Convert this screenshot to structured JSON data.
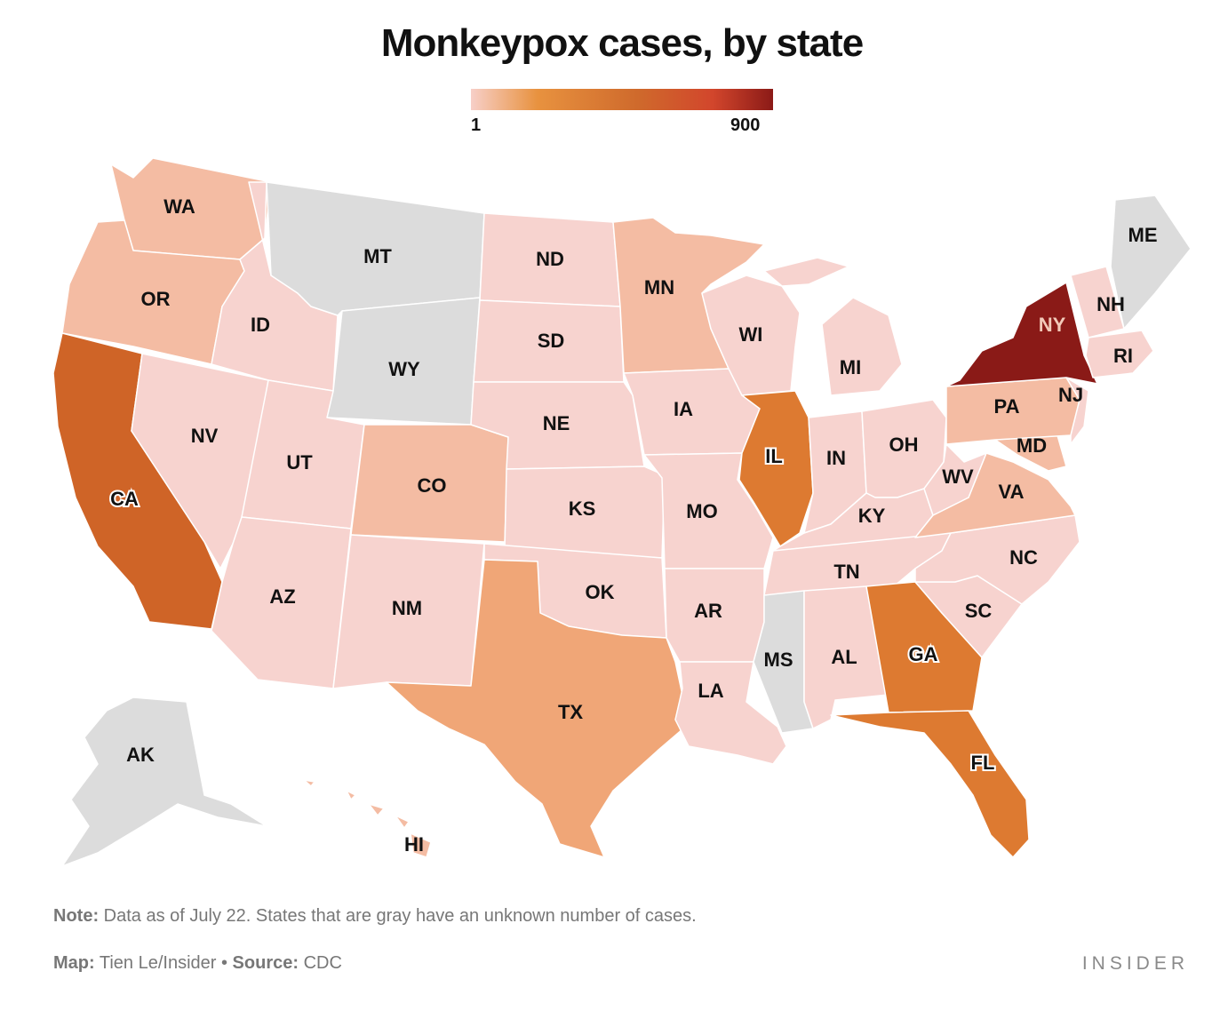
{
  "title": "Monkeypox cases, by state",
  "legend": {
    "min_label": "1",
    "max_label": "900",
    "stops": [
      "#f7cfc8",
      "#e8923f",
      "#cf6a2c",
      "#d2462c",
      "#8b1a17"
    ]
  },
  "colors": {
    "unknown": "#dcdcdc",
    "lowest": "#f7d3cf",
    "low": "#f4bca3",
    "mid_low": "#f0a677",
    "mid": "#dd7a31",
    "high": "#cf6427",
    "highest": "#8a1a17"
  },
  "states": [
    {
      "code": "WA",
      "level": "low"
    },
    {
      "code": "OR",
      "level": "low"
    },
    {
      "code": "CA",
      "level": "high"
    },
    {
      "code": "ID",
      "level": "lowest"
    },
    {
      "code": "NV",
      "level": "lowest"
    },
    {
      "code": "MT",
      "level": "unknown"
    },
    {
      "code": "WY",
      "level": "unknown"
    },
    {
      "code": "UT",
      "level": "lowest"
    },
    {
      "code": "AZ",
      "level": "lowest"
    },
    {
      "code": "CO",
      "level": "low"
    },
    {
      "code": "NM",
      "level": "lowest"
    },
    {
      "code": "ND",
      "level": "lowest"
    },
    {
      "code": "SD",
      "level": "lowest"
    },
    {
      "code": "NE",
      "level": "lowest"
    },
    {
      "code": "KS",
      "level": "lowest"
    },
    {
      "code": "OK",
      "level": "lowest"
    },
    {
      "code": "TX",
      "level": "mid_low"
    },
    {
      "code": "MN",
      "level": "low"
    },
    {
      "code": "IA",
      "level": "lowest"
    },
    {
      "code": "MO",
      "level": "lowest"
    },
    {
      "code": "AR",
      "level": "lowest"
    },
    {
      "code": "LA",
      "level": "lowest"
    },
    {
      "code": "WI",
      "level": "lowest"
    },
    {
      "code": "IL",
      "level": "mid"
    },
    {
      "code": "MI",
      "level": "lowest"
    },
    {
      "code": "IN",
      "level": "lowest"
    },
    {
      "code": "OH",
      "level": "lowest"
    },
    {
      "code": "KY",
      "level": "lowest"
    },
    {
      "code": "TN",
      "level": "lowest"
    },
    {
      "code": "MS",
      "level": "unknown"
    },
    {
      "code": "AL",
      "level": "lowest"
    },
    {
      "code": "GA",
      "level": "mid"
    },
    {
      "code": "FL",
      "level": "mid"
    },
    {
      "code": "SC",
      "level": "lowest"
    },
    {
      "code": "NC",
      "level": "lowest"
    },
    {
      "code": "VA",
      "level": "low"
    },
    {
      "code": "WV",
      "level": "lowest"
    },
    {
      "code": "MD",
      "level": "low"
    },
    {
      "code": "PA",
      "level": "low"
    },
    {
      "code": "NJ",
      "level": "lowest"
    },
    {
      "code": "NY",
      "level": "highest"
    },
    {
      "code": "RI",
      "level": "lowest"
    },
    {
      "code": "NH",
      "level": "lowest"
    },
    {
      "code": "ME",
      "level": "unknown"
    },
    {
      "code": "AK",
      "level": "unknown"
    },
    {
      "code": "HI",
      "level": "low"
    }
  ],
  "footer": {
    "note_label": "Note:",
    "note_text": " Data as of July 22. States that are gray have an unknown number of cases.",
    "map_label": "Map:",
    "map_text": " Tien Le/Insider",
    "bullet": " • ",
    "source_label": "Source:",
    "source_text": " CDC",
    "brand": "INSIDER"
  }
}
